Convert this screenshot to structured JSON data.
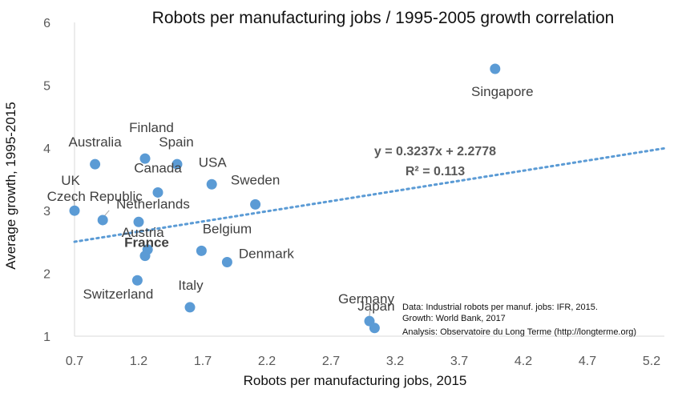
{
  "chart_data": {
    "type": "scatter",
    "title": "Robots per manufacturing jobs / 1995-2005 growth correlation",
    "xlabel": "Robots per manufacturing jobs, 2015",
    "ylabel": "Average growth, 1995-2015",
    "xlim": [
      0.7,
      5.3
    ],
    "ylim": [
      1,
      6
    ],
    "x_ticks": [
      0.7,
      1.2,
      1.7,
      2.2,
      2.7,
      3.2,
      3.7,
      4.2,
      4.7,
      5.2
    ],
    "x_tick_labels": [
      "0.7",
      "1.2",
      "1.7",
      "2.2",
      "2.7",
      "3.2",
      "3.7",
      "4.2",
      "4.7",
      "5.2"
    ],
    "y_ticks": [
      1,
      2,
      3,
      4,
      5,
      6
    ],
    "y_tick_labels": [
      "1",
      "2",
      "3",
      "4",
      "5",
      "6"
    ],
    "grid": false,
    "marker_color": "#5B9BD5",
    "trend_color": "#5B9BD5",
    "points": [
      {
        "name": "UK",
        "x": 0.7,
        "y": 3.0
      },
      {
        "name": "Australia",
        "x": 0.86,
        "y": 3.74
      },
      {
        "name": "Czech Republic",
        "x": 0.92,
        "y": 2.85
      },
      {
        "name": "Netherlands",
        "x": 1.2,
        "y": 2.82
      },
      {
        "name": "Switzerland",
        "x": 1.19,
        "y": 1.89
      },
      {
        "name": "Finland",
        "x": 1.25,
        "y": 3.83
      },
      {
        "name": "Austria",
        "x": 1.27,
        "y": 2.38
      },
      {
        "name": "France",
        "x": 1.25,
        "y": 2.28,
        "bold": true
      },
      {
        "name": "Canada",
        "x": 1.35,
        "y": 3.29
      },
      {
        "name": "Spain",
        "x": 1.5,
        "y": 3.74
      },
      {
        "name": "Italy",
        "x": 1.6,
        "y": 1.46
      },
      {
        "name": "Belgium",
        "x": 1.69,
        "y": 2.36
      },
      {
        "name": "USA",
        "x": 1.77,
        "y": 3.42
      },
      {
        "name": "Denmark",
        "x": 1.89,
        "y": 2.18
      },
      {
        "name": "Sweden",
        "x": 2.11,
        "y": 3.1
      },
      {
        "name": "Germany",
        "x": 3.0,
        "y": 1.24
      },
      {
        "name": "Japan",
        "x": 3.04,
        "y": 1.13
      },
      {
        "name": "Singapore",
        "x": 3.98,
        "y": 5.26
      }
    ],
    "trendline": {
      "slope": 0.3237,
      "intercept": 2.2778,
      "x_range": [
        0.7,
        5.3
      ],
      "equation": "y = 0.3237x + 2.2778",
      "r_squared": "R² = 0.113"
    },
    "source_note": [
      "Data: Industrial robots per manuf. jobs: IFR, 2015.",
      "Growth: World Bank, 2017",
      "Analysis: Observatoire du Long Terme (http://longterme.org)"
    ]
  }
}
